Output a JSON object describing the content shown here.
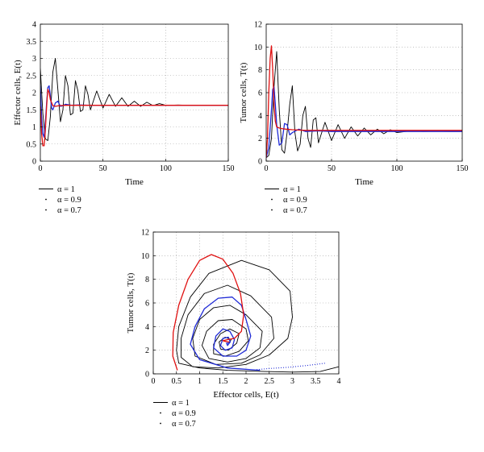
{
  "chart_data": [
    {
      "type": "line",
      "panel": "top-left",
      "xlabel": "Time",
      "ylabel": "Effector cells, E(t)",
      "xlim": [
        0,
        150
      ],
      "ylim": [
        0,
        4
      ],
      "xticks": [
        0,
        50,
        100,
        150
      ],
      "yticks": [
        0,
        0.5,
        1,
        1.5,
        2,
        2.5,
        3,
        3.5,
        4
      ],
      "grid": true,
      "legend_position": "below",
      "series": [
        {
          "name": "α = 1",
          "color": "#000000",
          "style": "solid",
          "x": [
            0,
            2,
            4,
            6,
            8,
            10,
            12,
            14,
            16,
            18,
            20,
            22,
            24,
            26,
            28,
            30,
            32,
            34,
            36,
            38,
            40,
            45,
            50,
            55,
            60,
            65,
            70,
            75,
            80,
            85,
            90,
            95,
            100,
            110,
            120,
            130,
            140,
            150
          ],
          "y": [
            2.7,
            1.4,
            0.65,
            0.6,
            1.3,
            2.6,
            3.0,
            2.1,
            1.15,
            1.5,
            2.5,
            2.2,
            1.35,
            1.4,
            2.35,
            2.05,
            1.45,
            1.5,
            2.2,
            1.95,
            1.5,
            2.05,
            1.55,
            1.95,
            1.6,
            1.85,
            1.6,
            1.75,
            1.6,
            1.72,
            1.62,
            1.68,
            1.63,
            1.64,
            1.63,
            1.63,
            1.63,
            1.63
          ]
        },
        {
          "name": "α = 0.9",
          "color": "#1f2ad6",
          "style": "solid",
          "x": [
            0,
            1,
            2,
            3,
            4,
            5,
            6,
            7,
            8,
            9,
            10,
            12,
            14,
            16,
            18,
            20,
            25,
            30,
            40,
            50,
            60,
            80,
            100,
            150
          ],
          "y": [
            2.2,
            1.3,
            0.8,
            0.7,
            1.1,
            1.7,
            2.15,
            2.2,
            1.9,
            1.55,
            1.5,
            1.7,
            1.75,
            1.6,
            1.62,
            1.66,
            1.63,
            1.64,
            1.63,
            1.63,
            1.63,
            1.63,
            1.63,
            1.63
          ]
        },
        {
          "name": "α = 0.7",
          "color": "#e01010",
          "style": "solid",
          "x": [
            0,
            1,
            2,
            3,
            4,
            5,
            6,
            7,
            8,
            10,
            12,
            15,
            20,
            30,
            50,
            80,
            100,
            150
          ],
          "y": [
            1.6,
            0.8,
            0.45,
            0.45,
            0.9,
            1.6,
            2.1,
            2.0,
            1.8,
            1.62,
            1.6,
            1.62,
            1.63,
            1.63,
            1.63,
            1.63,
            1.63,
            1.63
          ]
        }
      ]
    },
    {
      "type": "line",
      "panel": "top-right",
      "xlabel": "Time",
      "ylabel": "Tumor cells, T(t)",
      "xlim": [
        0,
        150
      ],
      "ylim": [
        0,
        12
      ],
      "xticks": [
        0,
        50,
        100,
        150
      ],
      "yticks": [
        0,
        2,
        4,
        6,
        8,
        10,
        12
      ],
      "grid": true,
      "legend_position": "below",
      "series": [
        {
          "name": "α = 1",
          "color": "#000000",
          "style": "solid",
          "x": [
            0,
            2,
            4,
            6,
            8,
            10,
            12,
            14,
            16,
            18,
            20,
            22,
            24,
            26,
            28,
            30,
            32,
            34,
            36,
            38,
            40,
            45,
            50,
            55,
            60,
            65,
            70,
            75,
            80,
            85,
            90,
            95,
            100,
            110,
            120,
            130,
            140,
            150
          ],
          "y": [
            0.3,
            0.5,
            2.0,
            6.5,
            9.6,
            4.5,
            1.0,
            0.7,
            2.5,
            5.0,
            6.6,
            2.5,
            0.9,
            1.5,
            4.0,
            4.8,
            2.0,
            1.2,
            3.6,
            3.8,
            1.6,
            3.4,
            1.8,
            3.2,
            2.0,
            3.0,
            2.2,
            2.9,
            2.3,
            2.8,
            2.4,
            2.75,
            2.5,
            2.65,
            2.6,
            2.62,
            2.6,
            2.6
          ]
        },
        {
          "name": "α = 0.9",
          "color": "#1f2ad6",
          "style": "solid",
          "x": [
            0,
            2,
            4,
            5,
            6,
            7,
            8,
            10,
            12,
            14,
            16,
            18,
            20,
            25,
            30,
            40,
            50,
            60,
            80,
            100,
            150
          ],
          "y": [
            0.3,
            1.2,
            4.5,
            6.3,
            6.5,
            5.0,
            3.2,
            1.4,
            1.6,
            3.3,
            3.2,
            2.3,
            2.5,
            2.8,
            2.6,
            2.65,
            2.6,
            2.6,
            2.6,
            2.6,
            2.6
          ]
        },
        {
          "name": "α = 0.7",
          "color": "#e01010",
          "style": "solid",
          "x": [
            0,
            1,
            2,
            3,
            4,
            5,
            6,
            7,
            8,
            10,
            12,
            15,
            20,
            30,
            50,
            80,
            100,
            150
          ],
          "y": [
            0.3,
            2.0,
            6.0,
            9.0,
            10.1,
            8.0,
            5.0,
            3.5,
            3.0,
            2.9,
            2.85,
            2.8,
            2.75,
            2.7,
            2.7,
            2.7,
            2.7,
            2.7
          ]
        }
      ]
    },
    {
      "type": "line",
      "panel": "bottom-phase",
      "xlabel": "Effector cells, E(t)",
      "ylabel": "Tumor cells, T(t)",
      "xlim": [
        0,
        4
      ],
      "ylim": [
        0,
        12
      ],
      "xticks": [
        0,
        0.5,
        1,
        1.5,
        2,
        2.5,
        3,
        3.5,
        4
      ],
      "yticks": [
        0,
        2,
        4,
        6,
        8,
        10,
        12
      ],
      "grid": true,
      "legend_position": "below",
      "series": [
        {
          "name": "α = 1",
          "color": "#000000",
          "style": "solid",
          "x": [
            4.0,
            3.6,
            3.0,
            2.4,
            1.6,
            1.0,
            0.55,
            0.5,
            0.55,
            0.8,
            1.2,
            1.9,
            2.5,
            2.95,
            3.0,
            2.9,
            2.5,
            2.0,
            1.4,
            0.85,
            0.6,
            0.6,
            0.75,
            1.1,
            1.6,
            2.1,
            2.55,
            2.6,
            2.3,
            1.9,
            1.35,
            0.9,
            0.85,
            1.0,
            1.3,
            1.65,
            2.0,
            2.35,
            2.3,
            2.0,
            1.6,
            1.2,
            1.05,
            1.15,
            1.4,
            1.7,
            2.0,
            2.05,
            1.85,
            1.55,
            1.3,
            1.3,
            1.45,
            1.65,
            1.85,
            1.8,
            1.62,
            1.45,
            1.42,
            1.55,
            1.68,
            1.63
          ],
          "y": [
            0.6,
            0.2,
            0.15,
            0.2,
            0.3,
            0.5,
            0.9,
            2.0,
            4.0,
            6.5,
            8.5,
            9.6,
            8.8,
            7.0,
            4.8,
            3.0,
            1.6,
            0.8,
            0.5,
            0.6,
            1.4,
            3.0,
            5.0,
            6.8,
            7.5,
            6.6,
            4.8,
            3.0,
            1.6,
            0.9,
            0.8,
            1.5,
            3.0,
            4.6,
            5.6,
            5.8,
            5.0,
            3.6,
            2.2,
            1.3,
            1.0,
            1.3,
            2.4,
            3.6,
            4.5,
            4.6,
            3.8,
            2.8,
            1.9,
            1.5,
            1.7,
            2.5,
            3.4,
            3.8,
            3.4,
            2.6,
            2.0,
            2.1,
            2.7,
            3.1,
            2.9,
            2.6
          ]
        },
        {
          "name": "α = 0.9",
          "color": "#1f2ad6",
          "style": "solid",
          "x": [
            2.3,
            1.6,
            1.0,
            0.8,
            0.9,
            1.1,
            1.4,
            1.7,
            1.9,
            2.0,
            2.1,
            2.0,
            1.8,
            1.5,
            1.3,
            1.35,
            1.5,
            1.65,
            1.75,
            1.7,
            1.55,
            1.45,
            1.5,
            1.62,
            1.66,
            1.6,
            1.58,
            1.63
          ],
          "y": [
            0.3,
            0.5,
            1.2,
            2.5,
            4.0,
            5.5,
            6.4,
            6.5,
            5.8,
            4.6,
            3.2,
            2.0,
            1.5,
            1.5,
            2.2,
            3.2,
            3.8,
            3.6,
            2.9,
            2.2,
            2.0,
            2.4,
            3.0,
            3.1,
            2.7,
            2.4,
            2.6,
            2.6
          ]
        },
        {
          "name": "α = 0.9 (dotted tail)",
          "color": "#1f2ad6",
          "style": "dotted",
          "x": [
            3.7,
            3.3,
            2.9,
            2.5,
            2.2
          ],
          "y": [
            0.9,
            0.7,
            0.55,
            0.45,
            0.35
          ]
        },
        {
          "name": "α = 0.7",
          "color": "#e01010",
          "style": "solid",
          "x": [
            0.52,
            0.42,
            0.43,
            0.55,
            0.75,
            1.0,
            1.25,
            1.5,
            1.72,
            1.88,
            1.95,
            1.9,
            1.75,
            1.6,
            1.5,
            1.55,
            1.63,
            1.62
          ],
          "y": [
            0.3,
            1.5,
            3.5,
            5.8,
            8.0,
            9.6,
            10.1,
            9.7,
            8.5,
            6.8,
            5.0,
            3.6,
            3.0,
            2.9,
            2.8,
            2.75,
            2.7,
            2.7
          ]
        }
      ]
    }
  ],
  "legends": [
    {
      "panel": "top-left",
      "entries": [
        "α = 1",
        "α = 0.9",
        "α = 0.7"
      ]
    },
    {
      "panel": "top-right",
      "entries": [
        "α = 1",
        "α = 0.9",
        "α = 0.7"
      ]
    },
    {
      "panel": "bottom-phase",
      "entries": [
        "α = 1",
        "α = 0.9",
        "α = 0.7"
      ]
    }
  ]
}
